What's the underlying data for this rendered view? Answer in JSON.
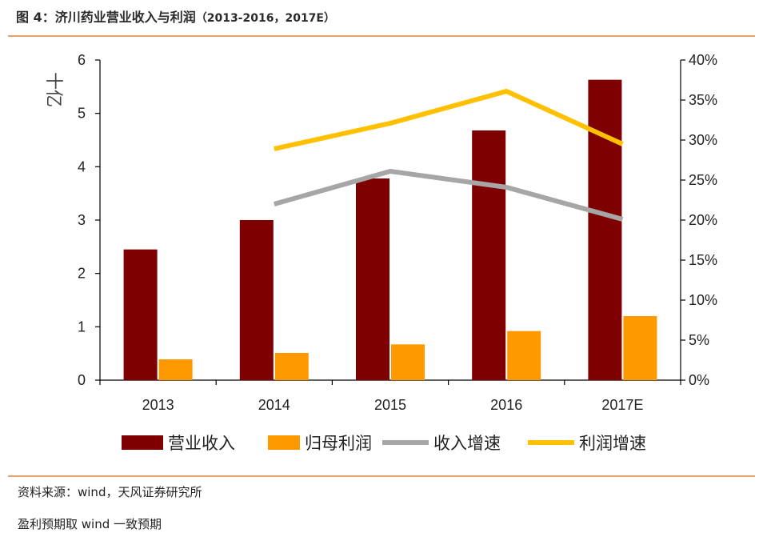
{
  "header": {
    "title": "图 4：济川药业营业收入与利润",
    "subtitle": "（2013-2016，2017E）"
  },
  "footer": {
    "source": "资料来源：wind，天风证券研究所",
    "consensus_note": "盈利预期取 wind 一致预期"
  },
  "colors": {
    "revenue": "#7f0000",
    "profit": "#ff9900",
    "revenue_growth": "#a6a6a6",
    "profit_growth": "#ffc000",
    "accent_rule": "#e8a064"
  },
  "chart_data": {
    "type": "bar",
    "categories": [
      "2013",
      "2014",
      "2015",
      "2016",
      "2017E"
    ],
    "ylabel": "十亿",
    "ylim": [
      0,
      6
    ],
    "y_ticks": [
      "0",
      "1",
      "2",
      "3",
      "4",
      "5",
      "6"
    ],
    "y2lim": [
      0,
      40
    ],
    "y2_ticks": [
      "0%",
      "5%",
      "10%",
      "15%",
      "20%",
      "25%",
      "30%",
      "35%",
      "40%"
    ],
    "legend_position": "bottom",
    "grid": false,
    "series": [
      {
        "name": "营业收入",
        "type": "bar",
        "axis": "left",
        "values": [
          2.45,
          3.0,
          3.78,
          4.68,
          5.63
        ]
      },
      {
        "name": "归母利润",
        "type": "bar",
        "axis": "left",
        "values": [
          0.39,
          0.51,
          0.67,
          0.92,
          1.2
        ]
      },
      {
        "name": "收入增速",
        "type": "line",
        "axis": "right",
        "values": [
          null,
          22.0,
          26.1,
          24.1,
          20.1
        ]
      },
      {
        "name": "利润增速",
        "type": "line",
        "axis": "right",
        "values": [
          null,
          28.9,
          32.1,
          36.1,
          29.5
        ]
      }
    ]
  }
}
